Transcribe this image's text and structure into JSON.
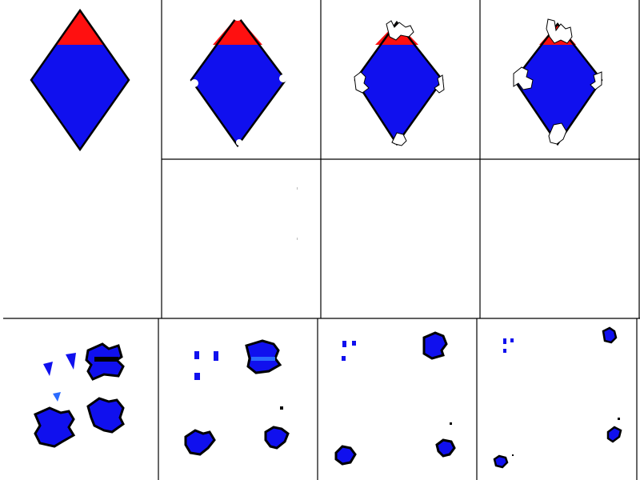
{
  "colors": {
    "background": "#ffffff",
    "grid_line": "#000000",
    "shape_fill": "#1010ee",
    "shape_top_band": "#ff1010",
    "shape_outline": "#000000",
    "fragment_highlight": "#2a6bff"
  },
  "panels": {
    "top_row": [
      {
        "stage": 1,
        "erosion": 0.0
      },
      {
        "stage": 2,
        "erosion": 0.15
      },
      {
        "stage": 3,
        "erosion": 0.3
      },
      {
        "stage": 4,
        "erosion": 0.45
      }
    ],
    "bottom_row": [
      {
        "stage": 1,
        "fragment_scale": 1.0
      },
      {
        "stage": 2,
        "fragment_scale": 0.85
      },
      {
        "stage": 3,
        "fragment_scale": 0.6
      },
      {
        "stage": 4,
        "fragment_scale": 0.4
      }
    ]
  }
}
